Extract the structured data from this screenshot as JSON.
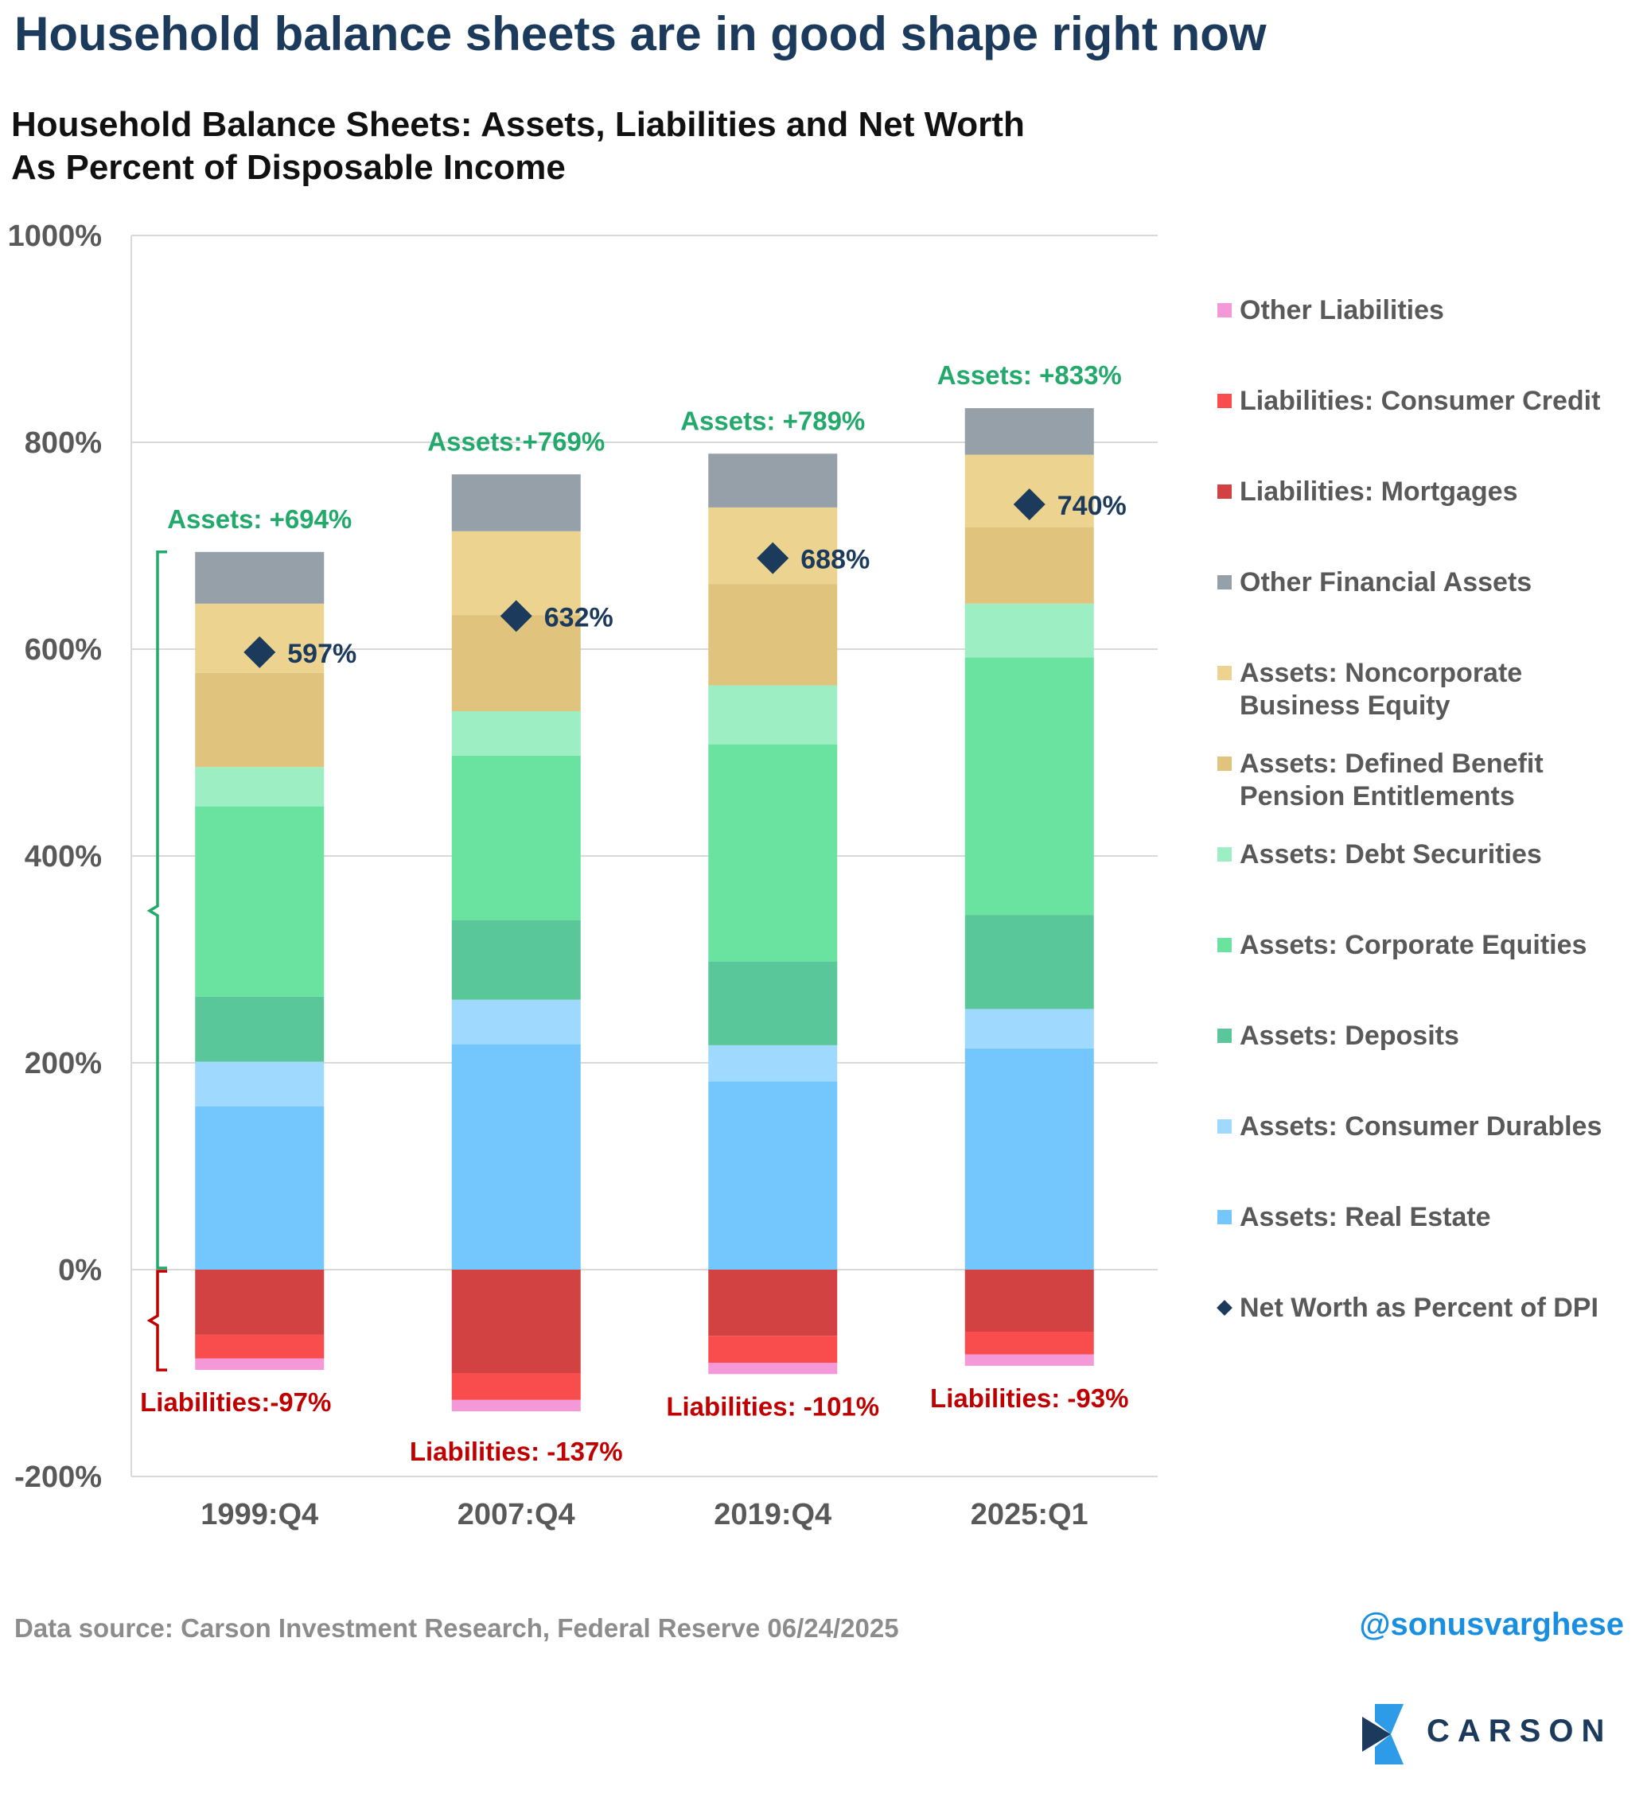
{
  "headline": "Household balance sheets are in good shape right now",
  "subtitle_line1": "Household Balance Sheets: Assets, Liabilities and Net Worth",
  "subtitle_line2": "As Percent of Disposable Income",
  "source": "Data source: Carson Investment Research, Federal Reserve   06/24/2025",
  "handle": "@sonusvarghese",
  "logo_text": "CARSON",
  "chart_data": {
    "type": "bar",
    "stacked": true,
    "categories": [
      "1999:Q4",
      "2007:Q4",
      "2019:Q4",
      "2025:Q1"
    ],
    "ylim": [
      -200,
      1000
    ],
    "yticks": [
      -200,
      0,
      200,
      400,
      600,
      800,
      1000
    ],
    "ytick_labels": [
      "-200%",
      "0%",
      "200%",
      "400%",
      "600%",
      "800%",
      "1000%"
    ],
    "grid": true,
    "legend_position": "right",
    "series": [
      {
        "name": "Assets: Real Estate",
        "color": "#74c7fc",
        "values": [
          158,
          218,
          182,
          214
        ]
      },
      {
        "name": "Assets: Consumer Durables",
        "color": "#9fd9fd",
        "values": [
          43,
          43,
          35,
          38
        ]
      },
      {
        "name": "Assets: Deposits",
        "color": "#5ac79a",
        "values": [
          63,
          77,
          81,
          91
        ]
      },
      {
        "name": "Assets: Corporate Equities",
        "color": "#6be3a0",
        "values": [
          184,
          159,
          210,
          249
        ]
      },
      {
        "name": "Assets: Debt Securities",
        "color": "#9eeec4",
        "values": [
          38,
          43,
          57,
          52
        ]
      },
      {
        "name": "Assets: Defined Benefit Pension Entitlements",
        "color": "#e0c47e",
        "values": [
          91,
          93,
          98,
          74
        ]
      },
      {
        "name": "Assets: Noncorporate Business Equity",
        "color": "#ecd490",
        "values": [
          67,
          81,
          74,
          70
        ]
      },
      {
        "name": "Other Financial Assets",
        "color": "#95a0a9",
        "values": [
          50,
          55,
          52,
          45
        ]
      },
      {
        "name": "Liabilities: Mortgages",
        "color": "#d24242",
        "values": [
          -63,
          -100,
          -64,
          -60
        ]
      },
      {
        "name": "Liabilities: Consumer Credit",
        "color": "#f94c4c",
        "values": [
          -23,
          -26,
          -26,
          -22
        ]
      },
      {
        "name": "Other Liabilities",
        "color": "#f598d8",
        "values": [
          -11,
          -11,
          -11,
          -11
        ]
      }
    ],
    "net_worth": {
      "name": "Net Worth as Percent of DPI",
      "color": "#1b3a5c",
      "values": [
        597,
        632,
        688,
        740
      ],
      "labels": [
        "597%",
        "632%",
        "688%",
        "740%"
      ]
    },
    "asset_labels": [
      "Assets: +694%",
      "Assets:+769%",
      "Assets: +789%",
      "Assets: +833%"
    ],
    "liability_labels": [
      "Liabilities:-97%",
      "Liabilities: -137%",
      "Liabilities: -101%",
      "Liabilities: -93%"
    ],
    "asset_color": "#23a96b",
    "liability_color": "#c00000"
  },
  "legend": [
    {
      "label": "Other Liabilities",
      "color": "#f598d8",
      "shape": "square"
    },
    {
      "label": "Liabilities: Consumer Credit",
      "color": "#f94c4c",
      "shape": "square"
    },
    {
      "label": "Liabilities: Mortgages",
      "color": "#d24242",
      "shape": "square"
    },
    {
      "label": "Other Financial Assets",
      "color": "#95a0a9",
      "shape": "square"
    },
    {
      "label": "Assets: Noncorporate\nBusiness Equity",
      "color": "#ecd490",
      "shape": "square"
    },
    {
      "label": "Assets: Defined Benefit\nPension Entitlements",
      "color": "#e0c47e",
      "shape": "square"
    },
    {
      "label": "Assets: Debt Securities",
      "color": "#9eeec4",
      "shape": "square"
    },
    {
      "label": "Assets: Corporate Equities",
      "color": "#6be3a0",
      "shape": "square"
    },
    {
      "label": "Assets: Deposits",
      "color": "#5ac79a",
      "shape": "square"
    },
    {
      "label": "Assets: Consumer Durables",
      "color": "#9fd9fd",
      "shape": "square"
    },
    {
      "label": "Assets: Real Estate",
      "color": "#74c7fc",
      "shape": "square"
    },
    {
      "label": "Net Worth as Percent of DPI",
      "color": "#1b3a5c",
      "shape": "diamond"
    }
  ]
}
